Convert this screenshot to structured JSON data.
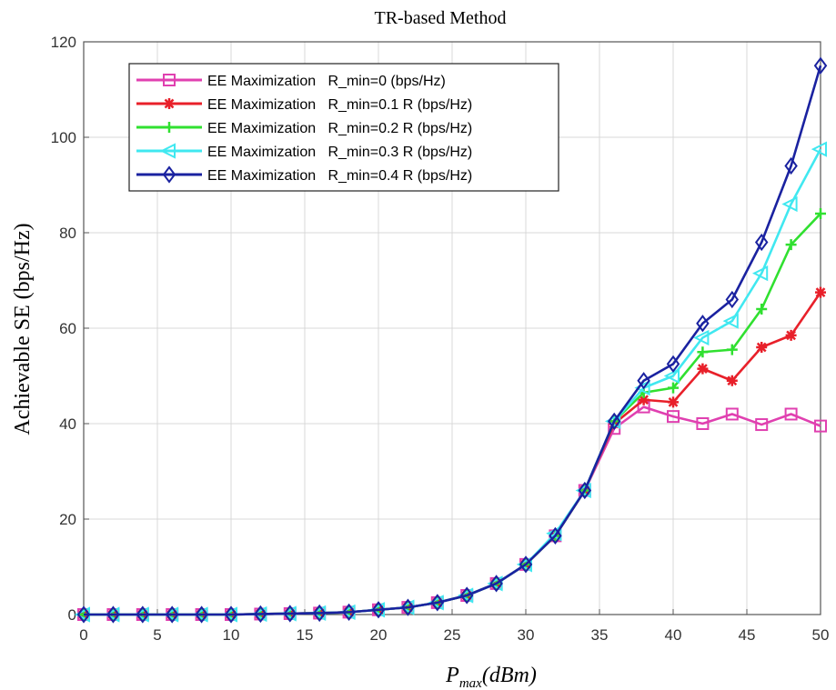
{
  "chart_data": {
    "type": "line",
    "title": "TR-based Method",
    "xlabel_main": "P",
    "xlabel_sub": "max",
    "xlabel_rest": "(dBm)",
    "ylabel": "Achievable SE (bps/Hz)",
    "xlim": [
      0,
      50
    ],
    "ylim": [
      0,
      120
    ],
    "xticks": [
      0,
      5,
      10,
      15,
      20,
      25,
      30,
      35,
      40,
      45,
      50
    ],
    "yticks": [
      0,
      20,
      40,
      60,
      80,
      100,
      120
    ],
    "grid": true,
    "legend_position": "top-left",
    "x": [
      0,
      2,
      4,
      6,
      8,
      10,
      12,
      14,
      16,
      18,
      20,
      22,
      24,
      26,
      28,
      30,
      32,
      34,
      36,
      38,
      40,
      42,
      44,
      46,
      48,
      50
    ],
    "series": [
      {
        "name": "EE Maximization   R_min=0 (bps/Hz)",
        "color": "#e040b0",
        "marker": "square",
        "values": [
          0,
          0,
          0,
          0,
          0,
          0,
          0.1,
          0.2,
          0.3,
          0.5,
          1,
          1.5,
          2.5,
          4,
          6.5,
          10.5,
          16.5,
          26,
          39,
          43.5,
          41.5,
          40,
          42,
          39.8,
          42,
          39.5
        ]
      },
      {
        "name": "EE Maximization   R_min=0.1 R (bps/Hz)",
        "color": "#e8202a",
        "marker": "star",
        "values": [
          0,
          0,
          0,
          0,
          0,
          0,
          0.1,
          0.2,
          0.3,
          0.5,
          1,
          1.5,
          2.5,
          4,
          6.5,
          10.5,
          16.5,
          26,
          40,
          45,
          44.5,
          51.5,
          49,
          56,
          58.5,
          67.5
        ]
      },
      {
        "name": "EE Maximization   R_min=0.2 R (bps/Hz)",
        "color": "#30e030",
        "marker": "plus",
        "values": [
          0,
          0,
          0,
          0,
          0,
          0,
          0.1,
          0.2,
          0.3,
          0.5,
          1,
          1.5,
          2.5,
          4,
          6.5,
          10.5,
          16.5,
          26,
          40.5,
          46.5,
          47.5,
          55,
          55.5,
          64,
          77.5,
          84
        ]
      },
      {
        "name": "EE Maximization   R_min=0.3 R (bps/Hz)",
        "color": "#40e8f0",
        "marker": "triangle-left",
        "values": [
          0,
          0,
          0,
          0,
          0,
          0,
          0.1,
          0.2,
          0.3,
          0.5,
          1,
          1.5,
          2.5,
          4,
          6.5,
          10.5,
          17,
          26,
          40.5,
          47.5,
          50,
          58,
          61.5,
          71.5,
          86,
          97.5
        ]
      },
      {
        "name": "EE Maximization   R_min=0.4 R (bps/Hz)",
        "color": "#1a22a0",
        "marker": "diamond",
        "values": [
          0,
          0,
          0,
          0,
          0,
          0,
          0.1,
          0.2,
          0.3,
          0.5,
          1,
          1.5,
          2.5,
          4,
          6.5,
          10.5,
          16.5,
          26,
          40.5,
          49,
          52.5,
          61,
          66,
          78,
          94,
          115
        ]
      }
    ]
  }
}
